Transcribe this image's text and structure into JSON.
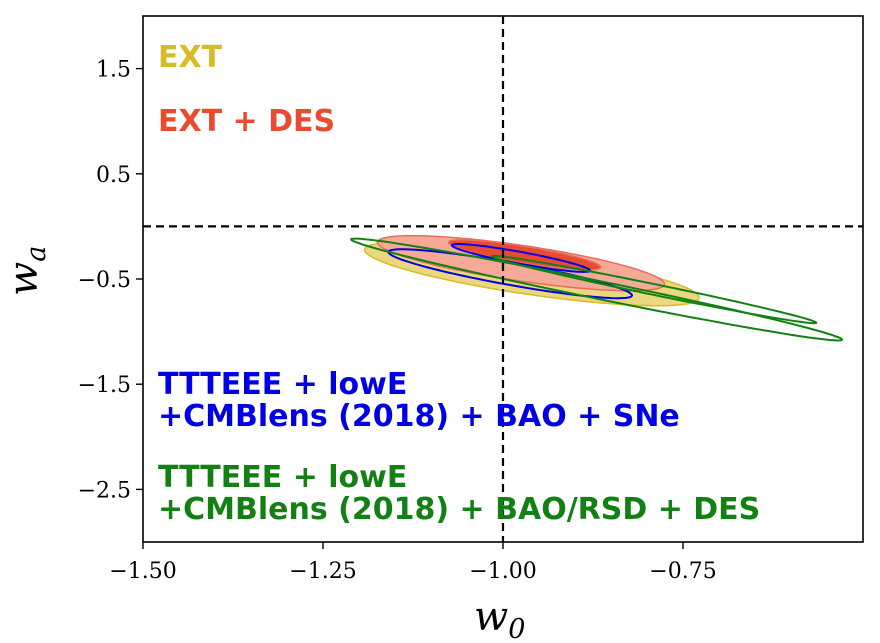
{
  "chart_data": {
    "type": "contour",
    "xlabel_main": "w",
    "xlabel_sub": "0",
    "ylabel_main": "w",
    "ylabel_sub": "a",
    "xlim": [
      -1.5,
      -0.5
    ],
    "ylim": [
      -3.0,
      2.0
    ],
    "xticks": [
      -1.5,
      -1.25,
      -1.0,
      -0.75
    ],
    "xtick_labels": [
      "−1.50",
      "−1.25",
      "−1.00",
      "−0.75"
    ],
    "yticks": [
      1.5,
      0.5,
      -0.5,
      -1.5,
      -2.5
    ],
    "ytick_labels": [
      "1.5",
      "0.5",
      "−0.5",
      "−1.5",
      "−2.5"
    ],
    "reference_lines": {
      "w0": -1.0,
      "wa": 0.0
    },
    "legend": [
      {
        "lines": [
          "EXT"
        ],
        "color": "#d4bd27"
      },
      {
        "lines": [
          "EXT + DES"
        ],
        "color": "#ea4a30"
      },
      {
        "lines": [
          "TTTEEE + lowE",
          "+CMBlens (2018) + BAO + SNe"
        ],
        "color": "#0000e6"
      },
      {
        "lines": [
          "TTTEEE + lowE",
          "+CMBlens (2018) + BAO/RSD + DES"
        ],
        "color": "#138013"
      }
    ],
    "series": [
      {
        "name": "EXT",
        "style": "filled",
        "color": "#ead77f",
        "edge": "#d4bd27",
        "contours": [
          {
            "level": "95%",
            "center": [
              -0.96,
              -0.45
            ],
            "a": 0.36,
            "b": 0.13,
            "angle_deg": -55
          }
        ]
      },
      {
        "name": "EXT + DES",
        "style": "filled",
        "colors": [
          "#f5aa98",
          "#ea4a30"
        ],
        "edge": "#e76e5c",
        "contours": [
          {
            "level": "95%",
            "center": [
              -0.975,
              -0.35
            ],
            "a": 0.31,
            "b": 0.11,
            "angle_deg": -55
          },
          {
            "level": "68%",
            "center": [
              -0.97,
              -0.27
            ],
            "a": 0.17,
            "b": 0.05,
            "angle_deg": -55
          }
        ]
      },
      {
        "name": "TTTEEE + lowE +CMBlens (2018) + BAO + SNe",
        "style": "line",
        "color": "#0000e6",
        "contours": [
          {
            "level": "95%",
            "center": [
              -0.99,
              -0.45
            ],
            "a": 0.28,
            "b": 0.065,
            "angle_deg": -55
          },
          {
            "level": "68%",
            "center": [
              -0.975,
              -0.3
            ],
            "a": 0.16,
            "b": 0.034,
            "angle_deg": -55
          }
        ]
      },
      {
        "name": "TTTEEE + lowE +CMBlens (2018) + BAO/RSD + DES",
        "style": "line",
        "color": "#138013",
        "contours": [
          {
            "level": "95%",
            "center": [
              -0.87,
              -0.6
            ],
            "a": 0.59,
            "b": 0.05,
            "angle_deg": -55
          },
          {
            "level": "68%",
            "center": [
              -0.79,
              -0.6
            ],
            "a": 0.39,
            "b": 0.03,
            "angle_deg": -55
          }
        ]
      }
    ]
  }
}
